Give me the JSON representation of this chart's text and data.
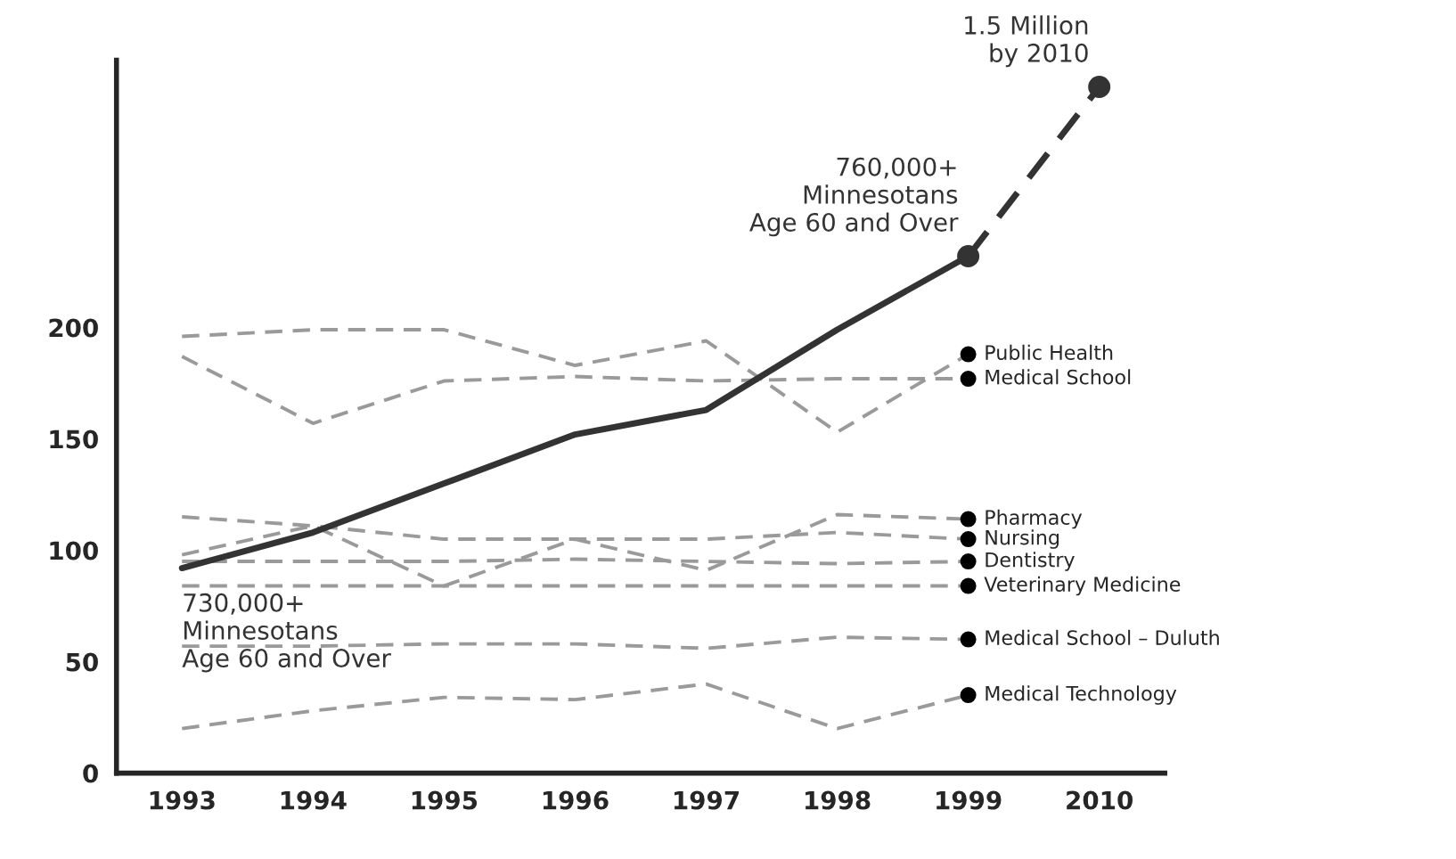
{
  "chart_data": {
    "type": "line",
    "categories": [
      "1993",
      "1994",
      "1995",
      "1996",
      "1997",
      "1998",
      "1999",
      "2010"
    ],
    "ylim": [
      0,
      320
    ],
    "yticks": [
      0,
      50,
      100,
      150,
      200
    ],
    "line_style": "dashed",
    "marker": "none",
    "legend": false,
    "series": [
      {
        "name": "Public Health",
        "color": "#9a9a9a",
        "values": [
          196,
          199,
          199,
          183,
          194,
          153,
          188,
          null
        ]
      },
      {
        "name": "Medical School",
        "color": "#9a9a9a",
        "values": [
          187,
          157,
          176,
          178,
          176,
          177,
          177,
          null
        ]
      },
      {
        "name": "Pharmacy",
        "color": "#9a9a9a",
        "values": [
          98,
          111,
          84,
          105,
          91,
          116,
          114,
          null
        ]
      },
      {
        "name": "Nursing",
        "color": "#9a9a9a",
        "values": [
          115,
          111,
          105,
          105,
          105,
          108,
          105,
          null
        ]
      },
      {
        "name": "Dentistry",
        "color": "#9a9a9a",
        "values": [
          95,
          95,
          95,
          96,
          95,
          94,
          95,
          null
        ]
      },
      {
        "name": "Veterinary Medicine",
        "color": "#9a9a9a",
        "values": [
          84,
          84,
          84,
          84,
          84,
          84,
          84,
          null
        ]
      },
      {
        "name": "Medical School – Duluth",
        "color": "#9a9a9a",
        "values": [
          57,
          57,
          58,
          58,
          56,
          61,
          60,
          null
        ]
      },
      {
        "name": "Medical Technology",
        "color": "#9a9a9a",
        "values": [
          20,
          28,
          34,
          33,
          40,
          20,
          35,
          null
        ]
      },
      {
        "type": "scatter",
        "color": "#000000",
        "marker": "circle",
        "values": [
          null,
          null,
          null,
          null,
          null,
          null,
          188,
          null
        ]
      },
      {
        "type": "scatter",
        "color": "#000000",
        "marker": "circle",
        "values": [
          null,
          null,
          null,
          null,
          null,
          null,
          177,
          null
        ]
      },
      {
        "type": "scatter",
        "color": "#000000",
        "marker": "circle",
        "values": [
          null,
          null,
          null,
          null,
          null,
          null,
          114,
          null
        ]
      },
      {
        "type": "scatter",
        "color": "#000000",
        "marker": "circle",
        "values": [
          null,
          null,
          null,
          null,
          null,
          null,
          105,
          null
        ]
      },
      {
        "type": "scatter",
        "color": "#000000",
        "marker": "circle",
        "values": [
          null,
          null,
          null,
          null,
          null,
          null,
          95,
          null
        ]
      },
      {
        "type": "scatter",
        "color": "#000000",
        "marker": "circle",
        "values": [
          null,
          null,
          null,
          null,
          null,
          null,
          84,
          null
        ]
      },
      {
        "type": "scatter",
        "color": "#000000",
        "marker": "circle",
        "values": [
          null,
          null,
          null,
          null,
          null,
          null,
          60,
          null
        ]
      },
      {
        "type": "scatter",
        "color": "#000000",
        "marker": "circle",
        "values": [
          null,
          null,
          null,
          null,
          null,
          null,
          35,
          null
        ]
      },
      {
        "color": "#333333",
        "line_style": "solid",
        "marker": "none",
        "values": [
          92,
          108,
          130,
          152,
          163,
          199,
          232,
          null
        ]
      },
      {
        "color": "#333333",
        "line_style": "dashed",
        "marker": "circle",
        "values": [
          null,
          null,
          null,
          null,
          null,
          null,
          232,
          308
        ]
      }
    ],
    "annotations": [
      {
        "text": "730,000+\nMinnesotans\nAge 60 and Over",
        "x": "1993",
        "y": 92
      },
      {
        "text": "760,000+\nMinnesotans\nAge 60 and Over",
        "x": "1999",
        "y": 232
      },
      {
        "text": "1.5 Million\nby 2010",
        "x": "2010",
        "y": 308
      }
    ]
  }
}
